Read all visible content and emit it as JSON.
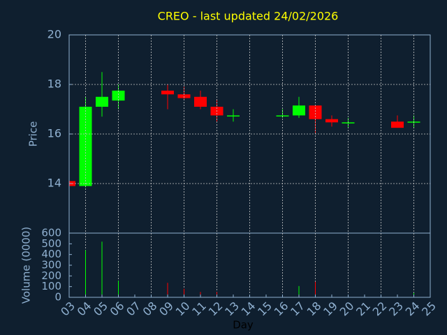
{
  "chart_data": [
    {
      "type": "candlestick",
      "title": "CREO - last updated 24/02/2026",
      "y_label": "Price",
      "categories": [
        "03",
        "04",
        "05",
        "06",
        "07",
        "08",
        "09",
        "10",
        "11",
        "12",
        "13",
        "14",
        "15",
        "16",
        "17",
        "18",
        "19",
        "20",
        "21",
        "22",
        "23",
        "24",
        "25"
      ],
      "open": [
        14.1,
        13.9,
        17.1,
        17.35,
        null,
        null,
        17.75,
        17.6,
        17.5,
        17.1,
        16.75,
        null,
        null,
        16.75,
        16.75,
        17.15,
        16.6,
        16.47,
        null,
        null,
        16.5,
        16.5,
        null
      ],
      "high": [
        14.1,
        17.5,
        18.5,
        18.0,
        null,
        null,
        18.0,
        17.9,
        17.75,
        17.4,
        17.0,
        null,
        null,
        17.0,
        17.5,
        17.15,
        16.75,
        16.65,
        null,
        null,
        16.75,
        16.75,
        null
      ],
      "low": [
        13.9,
        13.85,
        16.7,
        17.0,
        null,
        null,
        17.0,
        17.4,
        17.0,
        16.5,
        16.5,
        null,
        null,
        16.65,
        16.65,
        16.0,
        16.3,
        16.27,
        null,
        null,
        16.25,
        16.25,
        null
      ],
      "close": [
        13.9,
        17.1,
        17.5,
        17.75,
        null,
        null,
        17.6,
        17.45,
        17.1,
        16.75,
        16.75,
        null,
        null,
        16.75,
        17.15,
        16.6,
        16.47,
        16.47,
        null,
        null,
        16.25,
        16.5,
        null
      ],
      "up_color": "#00ff00",
      "down_color": "#ff0000",
      "ylim": [
        12,
        20
      ],
      "yticks": [
        14,
        16,
        18,
        20
      ],
      "grid": true
    },
    {
      "type": "bar",
      "x_label": "Day",
      "y_label": "Volume (0000)",
      "categories": [
        "03",
        "04",
        "05",
        "06",
        "07",
        "08",
        "09",
        "10",
        "11",
        "12",
        "13",
        "14",
        "15",
        "16",
        "17",
        "18",
        "19",
        "20",
        "21",
        "22",
        "23",
        "24",
        "25"
      ],
      "values": [
        0,
        440,
        520,
        155,
        null,
        null,
        135,
        80,
        50,
        50,
        20,
        null,
        null,
        10,
        105,
        145,
        10,
        10,
        null,
        null,
        5,
        40,
        null
      ],
      "ylim": [
        0,
        600
      ],
      "yticks": [
        0,
        100,
        200,
        300,
        400,
        500,
        600
      ],
      "grid": true
    }
  ]
}
